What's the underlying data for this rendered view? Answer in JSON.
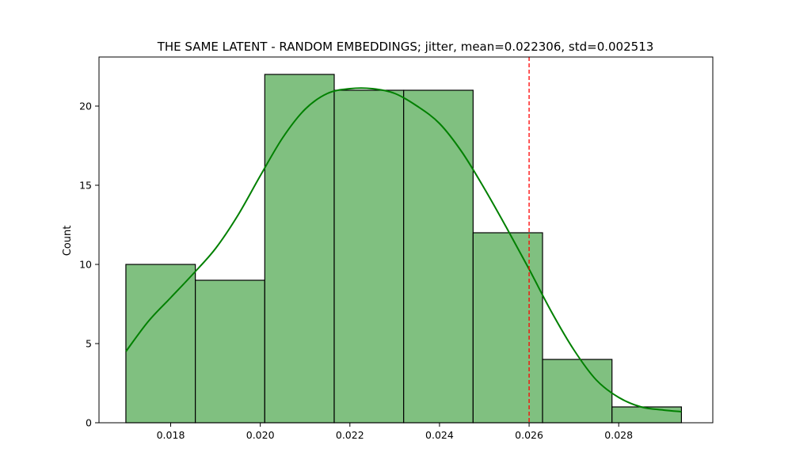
{
  "chart_data": {
    "type": "histogram",
    "title": "THE SAME LATENT - RANDOM EMBEDDINGS; jitter, mean=0.022306, std=0.002513",
    "xlabel": "",
    "ylabel": "Count",
    "bin_edges": [
      0.017,
      0.01855,
      0.0201,
      0.02165,
      0.0232,
      0.02475,
      0.0263,
      0.02785,
      0.0294
    ],
    "counts": [
      10,
      9,
      22,
      21,
      21,
      12,
      4,
      1
    ],
    "xlim": [
      0.0164,
      0.0301
    ],
    "ylim": [
      0,
      23.1
    ],
    "x_ticks": [
      0.018,
      0.02,
      0.022,
      0.024,
      0.026,
      0.028
    ],
    "x_tick_labels": [
      "0.018",
      "0.020",
      "0.022",
      "0.024",
      "0.026",
      "0.028"
    ],
    "y_ticks": [
      0,
      5,
      10,
      15,
      20
    ],
    "y_tick_labels": [
      "0",
      "5",
      "10",
      "15",
      "20"
    ],
    "kde_curve": {
      "x": [
        0.017,
        0.0175,
        0.018,
        0.0185,
        0.019,
        0.0195,
        0.02,
        0.0205,
        0.021,
        0.0215,
        0.022,
        0.0225,
        0.023,
        0.0235,
        0.024,
        0.0245,
        0.025,
        0.0255,
        0.026,
        0.0265,
        0.027,
        0.0275,
        0.028,
        0.0285,
        0.029,
        0.0294
      ],
      "y": [
        4.5,
        6.4,
        7.9,
        9.4,
        11.0,
        13.1,
        15.6,
        18.0,
        19.8,
        20.8,
        21.1,
        21.1,
        20.8,
        20.0,
        18.9,
        17.1,
        14.8,
        12.3,
        9.7,
        7.0,
        4.6,
        2.7,
        1.6,
        1.0,
        0.8,
        0.7
      ]
    },
    "vline": {
      "x": 0.026,
      "color": "#ff0000",
      "style": "dashed"
    },
    "bar_fill": "#80c080",
    "bar_edge": "#000000",
    "kde_color": "#008000",
    "grid": false,
    "legend": null
  }
}
